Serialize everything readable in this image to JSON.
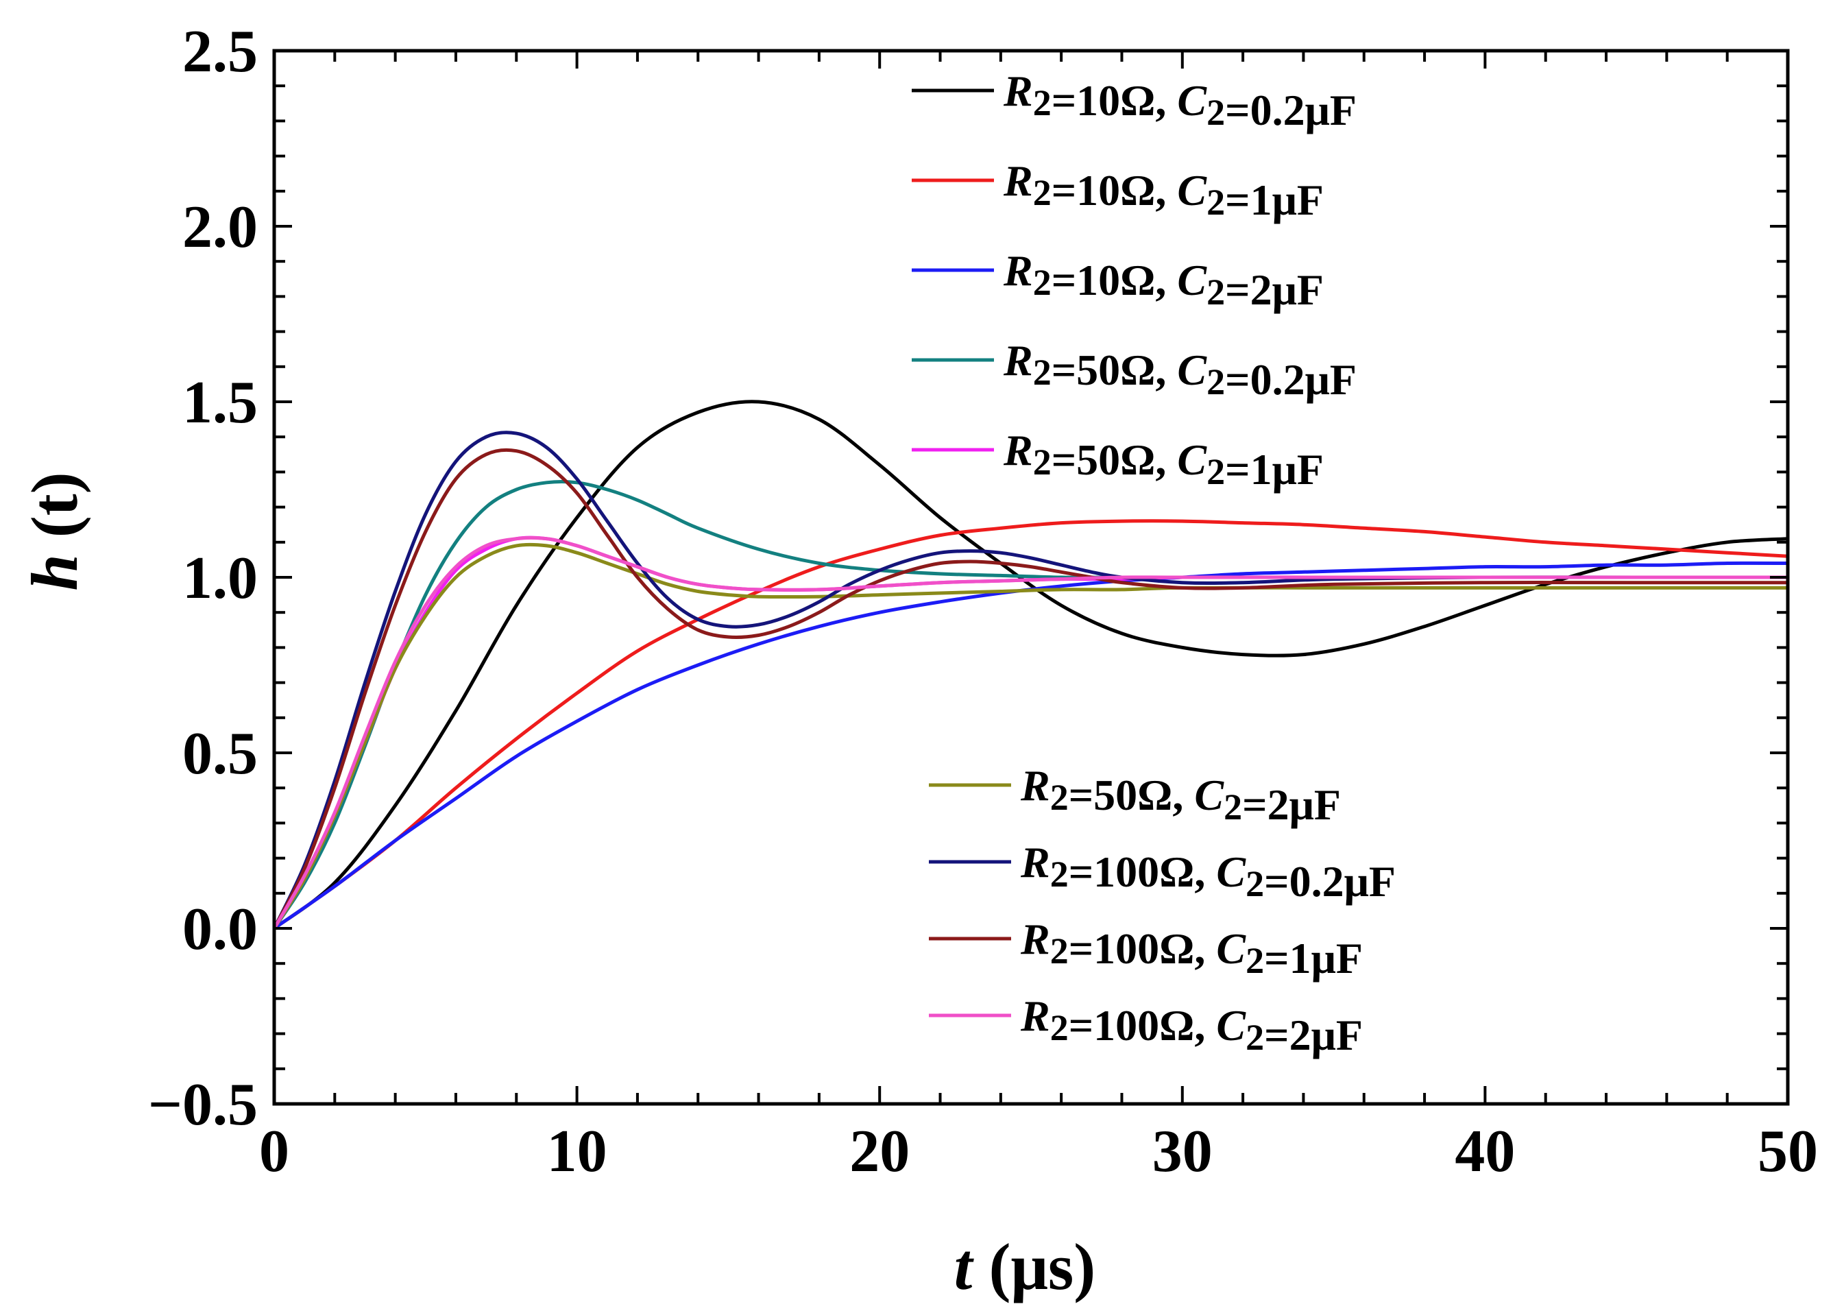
{
  "chart_data": {
    "type": "line",
    "title": "",
    "xlabel": {
      "var": "t",
      "unit": " (μs)"
    },
    "ylabel": {
      "var": "h",
      "unit": " (t)"
    },
    "xlim": [
      0,
      50
    ],
    "ylim": [
      -0.5,
      2.5
    ],
    "xticks": [
      0,
      10,
      20,
      30,
      40,
      50
    ],
    "xtick_labels": [
      "0",
      "10",
      "20",
      "30",
      "40",
      "50"
    ],
    "yticks": [
      -0.5,
      0.0,
      0.5,
      1.0,
      1.5,
      2.0,
      2.5
    ],
    "ytick_labels": [
      "−0.5",
      "0.0",
      "0.5",
      "1.0",
      "1.5",
      "2.0",
      "2.5"
    ],
    "grid": false,
    "legend_groups": [
      "top-right",
      "bottom-right"
    ],
    "series": [
      {
        "name": "R2=10Ω, C2=0.2μF",
        "r": "10Ω",
        "c": "0.2μF",
        "color": "#000000",
        "group": 0,
        "x": [
          0,
          2,
          4,
          6,
          8,
          10,
          12,
          14,
          16,
          18,
          20,
          22,
          24,
          26,
          28,
          30,
          32,
          34,
          36,
          38,
          40,
          42,
          44,
          46,
          48,
          50
        ],
        "y": [
          0,
          0.13,
          0.35,
          0.62,
          0.92,
          1.17,
          1.37,
          1.47,
          1.5,
          1.45,
          1.32,
          1.17,
          1.04,
          0.92,
          0.84,
          0.8,
          0.78,
          0.78,
          0.81,
          0.86,
          0.92,
          0.98,
          1.03,
          1.07,
          1.1,
          1.11
        ]
      },
      {
        "name": "R2=10Ω, C2=1μF",
        "r": "10Ω",
        "c": "1μF",
        "color": "#ee1c1c",
        "group": 0,
        "x": [
          0,
          2,
          4,
          6,
          8,
          10,
          12,
          14,
          16,
          18,
          20,
          22,
          24,
          26,
          28,
          30,
          32,
          34,
          36,
          38,
          40,
          42,
          44,
          46,
          48,
          50
        ],
        "y": [
          0,
          0.12,
          0.25,
          0.4,
          0.54,
          0.67,
          0.79,
          0.88,
          0.96,
          1.03,
          1.08,
          1.12,
          1.14,
          1.155,
          1.16,
          1.16,
          1.155,
          1.15,
          1.14,
          1.13,
          1.115,
          1.1,
          1.09,
          1.08,
          1.07,
          1.06
        ]
      },
      {
        "name": "R2=10Ω, C2=2μF",
        "r": "10Ω",
        "c": "2μF",
        "color": "#1c1cf5",
        "group": 0,
        "x": [
          0,
          2,
          4,
          6,
          8,
          10,
          12,
          14,
          16,
          18,
          20,
          22,
          24,
          26,
          28,
          30,
          32,
          34,
          36,
          38,
          40,
          42,
          44,
          46,
          48,
          50
        ],
        "y": [
          0,
          0.12,
          0.25,
          0.37,
          0.49,
          0.59,
          0.68,
          0.75,
          0.81,
          0.86,
          0.9,
          0.93,
          0.955,
          0.975,
          0.99,
          1.0,
          1.01,
          1.015,
          1.02,
          1.025,
          1.03,
          1.03,
          1.035,
          1.035,
          1.04,
          1.04
        ]
      },
      {
        "name": "R2=50Ω, C2=0.2μF",
        "r": "50Ω",
        "c": "0.2μF",
        "color": "#138080",
        "group": 0,
        "x": [
          0,
          1,
          2,
          3,
          4,
          5,
          6,
          7,
          8,
          9,
          10,
          11,
          12,
          13,
          14,
          16,
          18,
          20,
          22,
          24,
          26,
          28,
          30,
          35,
          40,
          45,
          50
        ],
        "y": [
          0,
          0.13,
          0.3,
          0.52,
          0.75,
          0.95,
          1.1,
          1.2,
          1.25,
          1.27,
          1.27,
          1.25,
          1.22,
          1.18,
          1.14,
          1.08,
          1.04,
          1.02,
          1.01,
          1.005,
          1.0,
          1.0,
          1.0,
          1.0,
          1.0,
          1.0,
          1.0
        ]
      },
      {
        "name": "R2=50Ω, C2=1μF",
        "r": "50Ω",
        "c": "1μF",
        "color": "#f020f0",
        "group": 0,
        "x": [
          0,
          1,
          2,
          3,
          4,
          5,
          6,
          7,
          8,
          9,
          10,
          11,
          12,
          13,
          14,
          15,
          16,
          18,
          20,
          22,
          24,
          26,
          28,
          30,
          35,
          40,
          45,
          50
        ],
        "y": [
          0,
          0.14,
          0.32,
          0.53,
          0.74,
          0.9,
          1.02,
          1.08,
          1.11,
          1.11,
          1.09,
          1.06,
          1.03,
          1.0,
          0.98,
          0.97,
          0.965,
          0.965,
          0.975,
          0.985,
          0.99,
          0.995,
          0.995,
          1.0,
          1.0,
          1.0,
          1.0,
          1.0
        ]
      },
      {
        "name": "R2=50Ω, C2=2μF",
        "r": "50Ω",
        "c": "2μF",
        "color": "#8a8a1a",
        "group": 1,
        "x": [
          0,
          1,
          2,
          3,
          4,
          5,
          6,
          7,
          8,
          9,
          10,
          11,
          12,
          13,
          14,
          15,
          16,
          18,
          20,
          22,
          24,
          26,
          28,
          30,
          35,
          40,
          45,
          50
        ],
        "y": [
          0,
          0.14,
          0.32,
          0.53,
          0.74,
          0.89,
          1.0,
          1.06,
          1.09,
          1.09,
          1.07,
          1.04,
          1.01,
          0.98,
          0.96,
          0.95,
          0.945,
          0.945,
          0.95,
          0.955,
          0.96,
          0.965,
          0.965,
          0.97,
          0.97,
          0.97,
          0.97,
          0.97
        ]
      },
      {
        "name": "R2=100Ω, C2=0.2μF",
        "r": "100Ω",
        "c": "0.2μF",
        "color": "#14147a",
        "group": 1,
        "x": [
          0,
          1,
          2,
          3,
          4,
          5,
          6,
          7,
          8,
          9,
          10,
          11,
          12,
          13,
          14,
          15,
          16,
          17,
          18,
          19,
          20,
          21,
          22,
          23,
          24,
          25,
          26,
          27,
          28,
          30,
          32,
          35,
          40,
          45,
          50
        ],
        "y": [
          0,
          0.18,
          0.42,
          0.7,
          0.96,
          1.18,
          1.33,
          1.4,
          1.41,
          1.37,
          1.28,
          1.16,
          1.04,
          0.94,
          0.88,
          0.86,
          0.865,
          0.89,
          0.93,
          0.98,
          1.02,
          1.05,
          1.07,
          1.075,
          1.07,
          1.055,
          1.035,
          1.015,
          1.0,
          0.985,
          0.985,
          0.995,
          1.0,
          1.0,
          1.0
        ]
      },
      {
        "name": "R2=100Ω, C2=1μF",
        "r": "100Ω",
        "c": "1μF",
        "color": "#8b1a1a",
        "group": 1,
        "x": [
          0,
          1,
          2,
          3,
          4,
          5,
          6,
          7,
          8,
          9,
          10,
          11,
          12,
          13,
          14,
          15,
          16,
          17,
          18,
          19,
          20,
          21,
          22,
          23,
          24,
          25,
          26,
          27,
          28,
          30,
          32,
          35,
          40,
          45,
          50
        ],
        "y": [
          0,
          0.17,
          0.4,
          0.67,
          0.92,
          1.13,
          1.28,
          1.35,
          1.36,
          1.32,
          1.24,
          1.12,
          1.0,
          0.91,
          0.85,
          0.83,
          0.835,
          0.86,
          0.9,
          0.95,
          0.99,
          1.02,
          1.04,
          1.045,
          1.04,
          1.03,
          1.015,
          1.0,
          0.985,
          0.97,
          0.97,
          0.98,
          0.985,
          0.985,
          0.985
        ]
      },
      {
        "name": "R2=100Ω, C2=2μF",
        "r": "100Ω",
        "c": "2μF",
        "color": "#f050c8",
        "group": 1,
        "x": [
          0,
          1,
          2,
          3,
          4,
          5,
          6,
          7,
          8,
          9,
          10,
          11,
          12,
          13,
          14,
          15,
          16,
          18,
          20,
          22,
          24,
          26,
          28,
          30,
          35,
          40,
          45,
          50
        ],
        "y": [
          0,
          0.15,
          0.33,
          0.55,
          0.76,
          0.92,
          1.03,
          1.09,
          1.11,
          1.11,
          1.09,
          1.06,
          1.03,
          1.0,
          0.98,
          0.97,
          0.965,
          0.965,
          0.975,
          0.985,
          0.99,
          0.995,
          1.0,
          1.0,
          1.0,
          1.0,
          1.0,
          1.0
        ]
      }
    ]
  }
}
